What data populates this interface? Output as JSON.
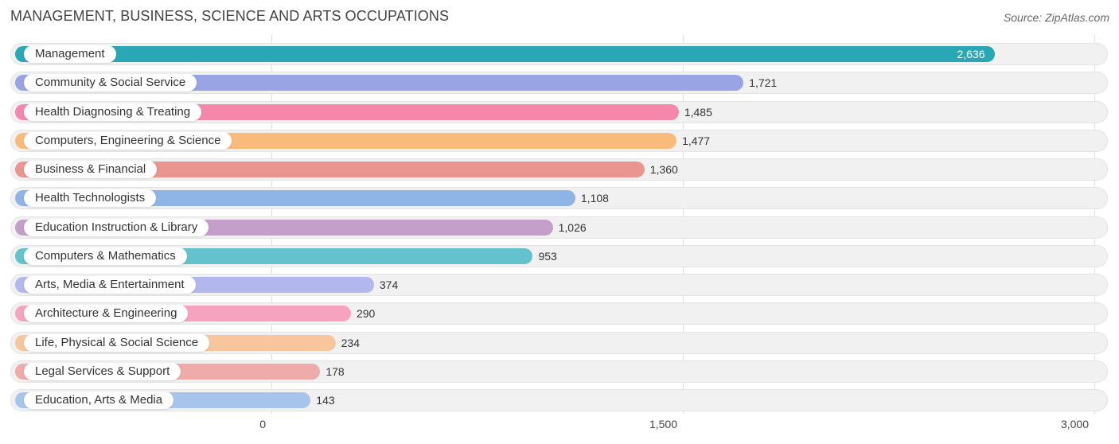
{
  "title": "MANAGEMENT, BUSINESS, SCIENCE AND ARTS OCCUPATIONS",
  "source": "Source: ZipAtlas.com",
  "chart_data": {
    "type": "bar",
    "orientation": "horizontal",
    "title": "MANAGEMENT, BUSINESS, SCIENCE AND ARTS OCCUPATIONS",
    "xlim": [
      0,
      3000
    ],
    "xticks": [
      0,
      1500,
      3000
    ],
    "xtick_labels": [
      "0",
      "1,500",
      "3,000"
    ],
    "grid": true,
    "categories": [
      "Management",
      "Community & Social Service",
      "Health Diagnosing & Treating",
      "Computers, Engineering & Science",
      "Business & Financial",
      "Health Technologists",
      "Education Instruction & Library",
      "Computers & Mathematics",
      "Arts, Media & Entertainment",
      "Architecture & Engineering",
      "Life, Physical & Social Science",
      "Legal Services & Support",
      "Education, Arts & Media"
    ],
    "values": [
      2636,
      1721,
      1485,
      1477,
      1360,
      1108,
      1026,
      953,
      374,
      290,
      234,
      178,
      143
    ],
    "value_labels": [
      "2,636",
      "1,721",
      "1,485",
      "1,477",
      "1,360",
      "1,108",
      "1,026",
      "953",
      "374",
      "290",
      "234",
      "178",
      "143"
    ],
    "colors": [
      "#2aa7b4",
      "#98a4e3",
      "#f587aa",
      "#f9bb7b",
      "#ea9590",
      "#8fb4e6",
      "#c39fc9",
      "#64c2cd",
      "#b2b8ee",
      "#f6a3bf",
      "#f8c69c",
      "#efaaaa",
      "#a6c4ec"
    ]
  }
}
